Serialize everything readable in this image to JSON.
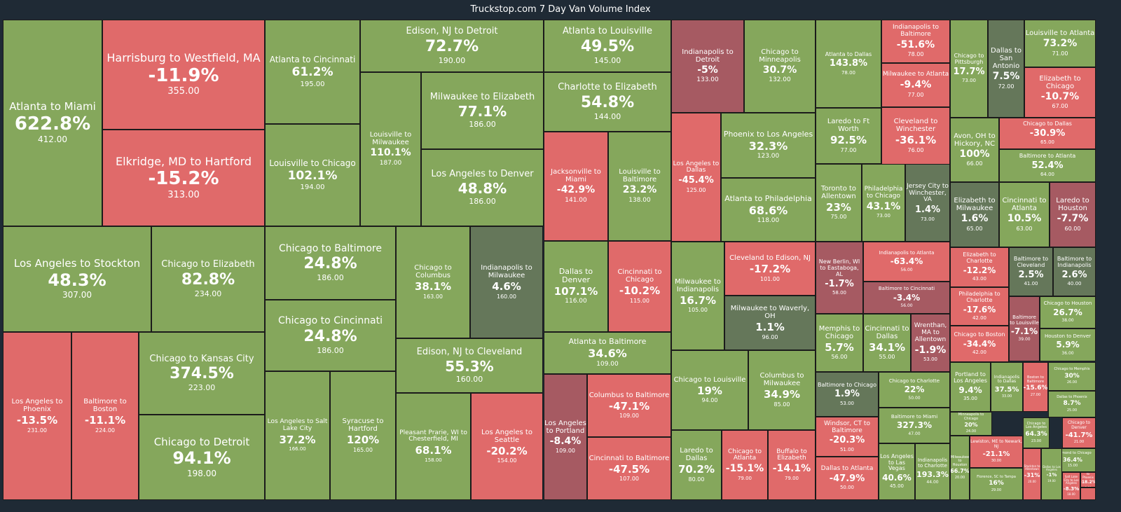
{
  "title": "Truckstop.com 7 Day Van Volume Index",
  "colors": {
    "positive": "#85a75c",
    "negative": "#e06a6a",
    "neutral": "#65775a",
    "dark_negative": "#a65a62",
    "background": "#1f2a35"
  },
  "chart_data": {
    "type": "treemap",
    "title": "Truckstop.com 7 Day Van Volume Index",
    "items": [
      {
        "label": "Atlanta to Miami",
        "change": "622.8%",
        "value": "412.00"
      },
      {
        "label": "Harrisburg to Westfield, MA",
        "change": "-11.9%",
        "value": "355.00"
      },
      {
        "label": "Elkridge, MD to Hartford",
        "change": "-15.2%",
        "value": "313.00"
      },
      {
        "label": "Atlanta to Cincinnati",
        "change": "61.2%",
        "value": "195.00"
      },
      {
        "label": "Louisville to Chicago",
        "change": "102.1%",
        "value": "194.00"
      },
      {
        "label": "Edison, NJ to Detroit",
        "change": "72.7%",
        "value": "190.00"
      },
      {
        "label": "Louisville to Milwaukee",
        "change": "110.1%",
        "value": "187.00"
      },
      {
        "label": "Milwaukee to Elizabeth",
        "change": "77.1%",
        "value": "186.00"
      },
      {
        "label": "Los Angeles to Denver",
        "change": "48.8%",
        "value": "186.00"
      },
      {
        "label": "Atlanta to Louisville",
        "change": "49.5%",
        "value": "145.00"
      },
      {
        "label": "Charlotte to Elizabeth",
        "change": "54.8%",
        "value": "144.00"
      },
      {
        "label": "Jacksonville to Miami",
        "change": "-42.9%",
        "value": "141.00"
      },
      {
        "label": "Louisville to Baltimore",
        "change": "23.2%",
        "value": "138.00"
      },
      {
        "label": "Indianapolis to Detroit",
        "change": "-5%",
        "value": "133.00"
      },
      {
        "label": "Chicago to Minneapolis",
        "change": "30.7%",
        "value": "132.00"
      },
      {
        "label": "Los Angeles to Dallas",
        "change": "-45.4%",
        "value": "125.00"
      },
      {
        "label": "Phoenix to Los Angeles",
        "change": "32.3%",
        "value": "123.00"
      },
      {
        "label": "Atlanta to Philadelphia",
        "change": "68.6%",
        "value": "118.00"
      },
      {
        "label": "Atlanta to Dallas",
        "change": "143.8%",
        "value": "78.00"
      },
      {
        "label": "Laredo to Ft Worth",
        "change": "92.5%",
        "value": "77.00"
      },
      {
        "label": "Indianapolis to Baltimore",
        "change": "-51.6%",
        "value": "78.00"
      },
      {
        "label": "Milwaukee to Atlanta",
        "change": "-9.4%",
        "value": "77.00"
      },
      {
        "label": "Cleveland to Winchester",
        "change": "-36.1%",
        "value": "76.00"
      },
      {
        "label": "Chicago to Pittsburgh",
        "change": "17.7%",
        "value": "73.00"
      },
      {
        "label": "Dallas to San Antonio",
        "change": "7.5%",
        "value": "72.00"
      },
      {
        "label": "Louisville to Atlanta",
        "change": "73.2%",
        "value": "71.00"
      },
      {
        "label": "Elizabeth to Chicago",
        "change": "-10.7%",
        "value": "67.00"
      },
      {
        "label": "Avon, OH to Hickory, NC",
        "change": "100%",
        "value": "66.00"
      },
      {
        "label": "Chicago to Dallas",
        "change": "-30.9%",
        "value": "65.00"
      },
      {
        "label": "Baltimore to Atlanta",
        "change": "52.4%",
        "value": "64.00"
      },
      {
        "label": "Toronto to Allentown",
        "change": "23%",
        "value": "75.00"
      },
      {
        "label": "Philadelphia to Chicago",
        "change": "43.1%",
        "value": "73.00"
      },
      {
        "label": "Jersey City to Winchester, VA",
        "change": "1.4%",
        "value": "73.00"
      },
      {
        "label": "Elizabeth to Milwaukee",
        "change": "1.6%",
        "value": "65.00"
      },
      {
        "label": "Cincinnati to Atlanta",
        "change": "10.5%",
        "value": "63.00"
      },
      {
        "label": "Laredo to Houston",
        "change": "-7.7%",
        "value": "60.00"
      },
      {
        "label": "Los Angeles to Stockton",
        "change": "48.3%",
        "value": "307.00"
      },
      {
        "label": "Chicago to Elizabeth",
        "change": "82.8%",
        "value": "234.00"
      },
      {
        "label": "Chicago to Baltimore",
        "change": "24.8%",
        "value": "186.00"
      },
      {
        "label": "Chicago to Cincinnati",
        "change": "24.8%",
        "value": "186.00"
      },
      {
        "label": "Chicago to Columbus",
        "change": "38.1%",
        "value": "163.00"
      },
      {
        "label": "Indianapolis to Milwaukee",
        "change": "4.6%",
        "value": "160.00"
      },
      {
        "label": "Edison, NJ to Cleveland",
        "change": "55.3%",
        "value": "160.00"
      },
      {
        "label": "Dallas to Denver",
        "change": "107.1%",
        "value": "116.00"
      },
      {
        "label": "Cincinnati to Chicago",
        "change": "-10.2%",
        "value": "115.00"
      },
      {
        "label": "Milwaukee to Indianapolis",
        "change": "16.7%",
        "value": "105.00"
      },
      {
        "label": "Cleveland to Edison, NJ",
        "change": "-17.2%",
        "value": "101.00"
      },
      {
        "label": "Milwaukee to Waverly, OH",
        "change": "1.1%",
        "value": "96.00"
      },
      {
        "label": "New Berlin, WI to Eastaboga, AL",
        "change": "-1.7%",
        "value": "58.00"
      },
      {
        "label": "Indianapolis to Atlanta",
        "change": "-63.4%",
        "value": "56.00"
      },
      {
        "label": "Baltimore to Cincinnati",
        "change": "-3.4%",
        "value": "56.00"
      },
      {
        "label": "Elizabeth to Charlotte",
        "change": "-12.2%",
        "value": "43.00"
      },
      {
        "label": "Baltimore to Cleveland",
        "change": "2.5%",
        "value": "41.00"
      },
      {
        "label": "Baltimore to Indianapolis",
        "change": "2.6%",
        "value": "40.00"
      },
      {
        "label": "Philadelphia to Charlotte",
        "change": "-17.6%",
        "value": "42.00"
      },
      {
        "label": "Baltimore to Louisville",
        "change": "-7.1%",
        "value": "39.00"
      },
      {
        "label": "Chicago to Houston",
        "change": "26.7%",
        "value": "38.00"
      },
      {
        "label": "Houston to Denver",
        "change": "5.9%",
        "value": "36.00"
      },
      {
        "label": "Chicago to Boston",
        "change": "-34.4%",
        "value": "42.00"
      },
      {
        "label": "Memphis to Chicago",
        "change": "5.7%",
        "value": "56.00"
      },
      {
        "label": "Cincinnati to Dallas",
        "change": "34.1%",
        "value": "55.00"
      },
      {
        "label": "Wrenthan, MA to Allentown",
        "change": "-1.9%",
        "value": "53.00"
      },
      {
        "label": "Los Angeles to Phoenix",
        "change": "-13.5%",
        "value": "231.00"
      },
      {
        "label": "Baltimore to Boston",
        "change": "-11.1%",
        "value": "224.00"
      },
      {
        "label": "Chicago to Kansas City",
        "change": "374.5%",
        "value": "223.00"
      },
      {
        "label": "Chicago to Detroit",
        "change": "94.1%",
        "value": "198.00"
      },
      {
        "label": "Los Angeles to Salt Lake City",
        "change": "37.2%",
        "value": "166.00"
      },
      {
        "label": "Syracuse to Hartford",
        "change": "120%",
        "value": "165.00"
      },
      {
        "label": "Pleasant Prarie, WI to Chesterfield, MI",
        "change": "68.1%",
        "value": "158.00"
      },
      {
        "label": "Los Angeles to Seattle",
        "change": "-20.2%",
        "value": "154.00"
      },
      {
        "label": "Atlanta to Baltimore",
        "change": "34.6%",
        "value": "109.00"
      },
      {
        "label": "Los Angeles to Portland",
        "change": "-8.4%",
        "value": "109.00"
      },
      {
        "label": "Columbus to Baltimore",
        "change": "-47.1%",
        "value": "109.00"
      },
      {
        "label": "Cincinnati to Baltimore",
        "change": "-47.5%",
        "value": "107.00"
      },
      {
        "label": "Chicago to Louisville",
        "change": "19%",
        "value": "94.00"
      },
      {
        "label": "Columbus to Milwaukee",
        "change": "34.9%",
        "value": "85.00"
      },
      {
        "label": "Laredo to Dallas",
        "change": "70.2%",
        "value": "80.00"
      },
      {
        "label": "Chicago to Atlanta",
        "change": "-15.1%",
        "value": "79.00"
      },
      {
        "label": "Buffalo to Elizabeth",
        "change": "-14.1%",
        "value": "79.00"
      },
      {
        "label": "Baltimore to Chicago",
        "change": "1.9%",
        "value": "53.00"
      },
      {
        "label": "Chicago to Charlotte",
        "change": "22%",
        "value": "50.00"
      },
      {
        "label": "Windsor, CT to Baltimore",
        "change": "-20.3%",
        "value": "51.00"
      },
      {
        "label": "Baltimore to Miami",
        "change": "327.3%",
        "value": "47.00"
      },
      {
        "label": "Dallas to Atlanta",
        "change": "-47.9%",
        "value": "50.00"
      },
      {
        "label": "Los Angeles to Las Vegas",
        "change": "40.6%",
        "value": "45.00"
      },
      {
        "label": "Indianapolis to Charlotte",
        "change": "193.3%",
        "value": "44.00"
      },
      {
        "label": "Portland to Los Angeles",
        "change": "9.4%",
        "value": "35.00"
      },
      {
        "label": "Indianapolis to Dallas",
        "change": "37.5%",
        "value": "33.00"
      },
      {
        "label": "Boston to Baltimore",
        "change": "-15.6%",
        "value": "27.00"
      },
      {
        "label": "Chicago to Memphis",
        "change": "30%",
        "value": "26.00"
      },
      {
        "label": "Dallas to Phoenix",
        "change": "8.7%",
        "value": "25.00"
      },
      {
        "label": "Minneapolis to Chicago",
        "change": "20%",
        "value": "24.00"
      },
      {
        "label": "Chicago to Los Angeles",
        "change": "64.3%",
        "value": "23.00"
      },
      {
        "label": "Chicago to Denver",
        "change": "-41.7%",
        "value": "21.00"
      },
      {
        "label": "Lewiston, ME to Newark, NJ",
        "change": "-21.1%",
        "value": "30.00"
      },
      {
        "label": "Milwaukee to Houston",
        "change": "66.7%",
        "value": "20.00"
      },
      {
        "label": "Florence, SC to Tampa",
        "change": "16%",
        "value": "29.00"
      },
      {
        "label": "Richmond to Chicago",
        "change": "36.4%",
        "value": "15.00"
      },
      {
        "label": "Stockton to Allentown",
        "change": "-31%",
        "value": "20.00"
      },
      {
        "label": "Dallas to Los Angeles",
        "change": "-1%",
        "value": "19.00"
      },
      {
        "label": "Salt Lake City to Los Angeles",
        "change": "-8.3%",
        "value": "18.00"
      },
      {
        "label": "Chicago to Phoenix",
        "change": "-18.2%",
        "value": "9.00"
      },
      {
        "label": "",
        "change": "",
        "value": ""
      }
    ]
  }
}
